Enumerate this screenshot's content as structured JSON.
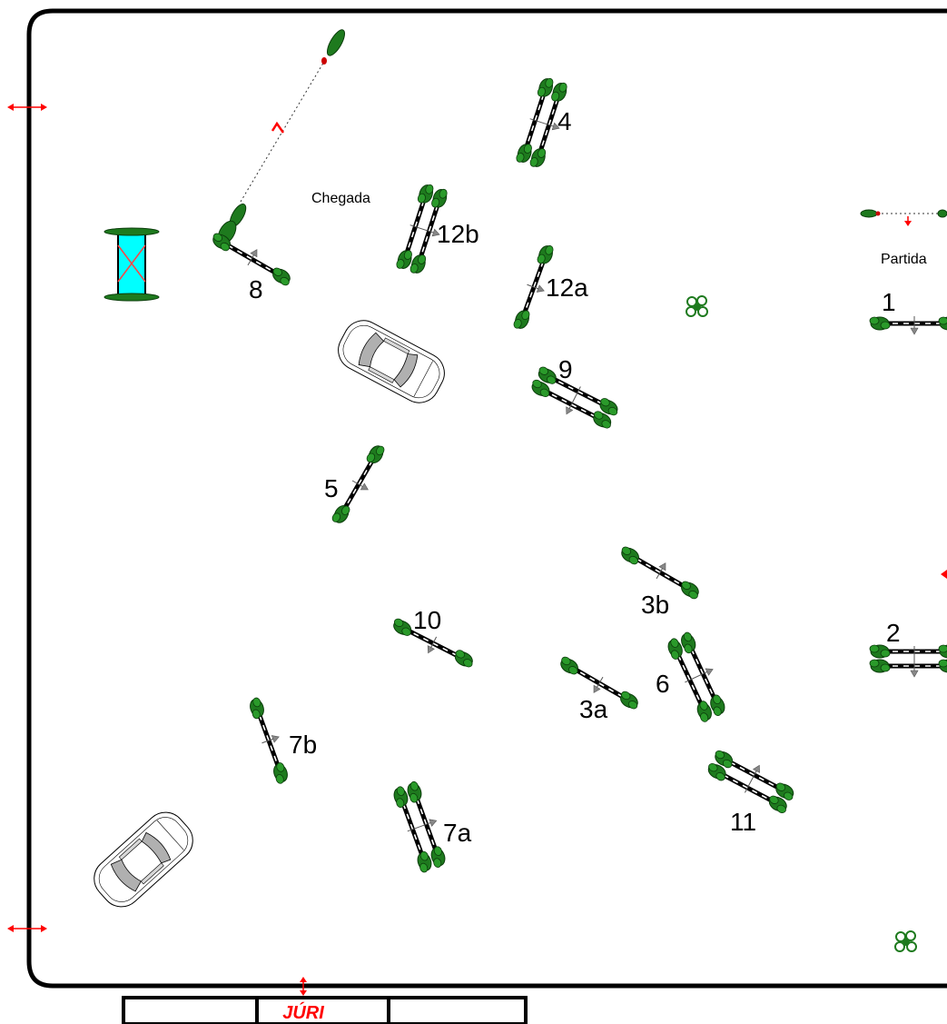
{
  "labels": {
    "finish": "Chegada",
    "start": "Partida",
    "jury": "JÚRI"
  },
  "obstacles": [
    "1",
    "2",
    "3a",
    "3b",
    "4",
    "5",
    "6",
    "7a",
    "7b",
    "8",
    "9",
    "10",
    "11",
    "12a",
    "12b"
  ],
  "colors": {
    "border": "#000000",
    "shrub": "#1e7a1e",
    "shrub_dark": "#0b3d0b",
    "arrow_red": "#ff0000",
    "water": "#00ffff",
    "arrow_grey": "#888888"
  }
}
